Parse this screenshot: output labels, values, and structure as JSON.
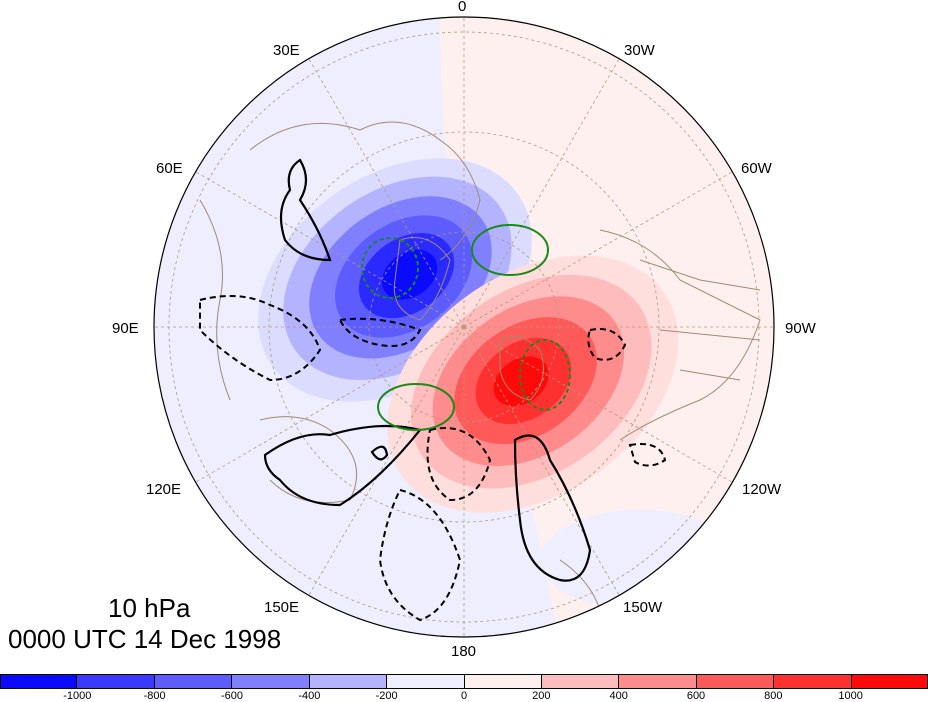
{
  "title": {
    "level": "10 hPa",
    "datetime": "0000 UTC 14 Dec 1998"
  },
  "map": {
    "projection": "polar stereographic (north pole)",
    "longitude_labels": [
      "0",
      "30W",
      "60W",
      "90W",
      "120W",
      "150W",
      "180",
      "150E",
      "120E",
      "90E",
      "60E",
      "30E"
    ],
    "fill_positive_color": "#ff0000",
    "fill_negative_color": "#0000ff",
    "coastline_color": "#a08a70",
    "grid_color": "#b09a78",
    "contour_solid_color": "#000000",
    "contour_green_color": "#1a8a1a"
  },
  "colorbar": {
    "ticks": [
      "-1000",
      "-800",
      "-600",
      "-400",
      "-200",
      "0",
      "200",
      "400",
      "600",
      "800",
      "1000"
    ],
    "colors": [
      "#0a0aff",
      "#3a3aff",
      "#5c5cff",
      "#8080ff",
      "#b3b3ff",
      "#eeeeff",
      "#fff0f0",
      "#ffbcbc",
      "#ff8c8c",
      "#ff5a5a",
      "#ff3030",
      "#ff0a0a"
    ]
  }
}
